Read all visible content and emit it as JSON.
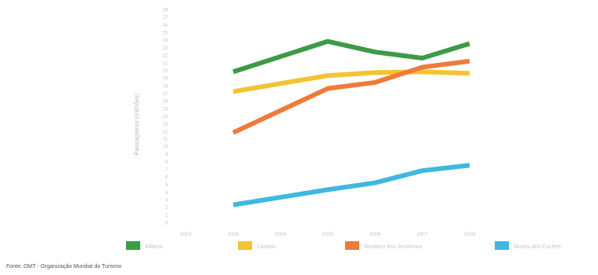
{
  "chart_data": {
    "type": "line",
    "title": "",
    "xlabel": "",
    "ylabel": "Passageiros (milhões)",
    "x": [
      "2002",
      "2003",
      "2004",
      "2005",
      "2006",
      "2007",
      "2008"
    ],
    "ylim": [
      0,
      28
    ],
    "yticks": [
      0,
      1,
      2,
      3,
      4,
      5,
      6,
      7,
      8,
      9,
      10,
      11,
      12,
      13,
      14,
      15,
      16,
      17,
      18,
      19,
      20,
      21,
      22,
      23,
      24,
      25,
      26,
      27,
      28
    ],
    "grid": false,
    "legend": "bottom",
    "series": [
      {
        "name": "Alfama",
        "color": "#3d9a46",
        "values": [
          null,
          19.8,
          null,
          23.8,
          22.4,
          21.6,
          23.5
        ]
      },
      {
        "name": "Castelo",
        "color": "#f2c431",
        "values": [
          null,
          17.2,
          null,
          19.3,
          19.7,
          19.8,
          19.6
        ]
      },
      {
        "name": "Mosteiro dos Jerónimos",
        "color": "#ee7b3a",
        "values": [
          null,
          11.8,
          null,
          17.6,
          18.4,
          20.4,
          21.2
        ]
      },
      {
        "name": "Museu dos Coches",
        "color": "#3fb8e0",
        "values": [
          null,
          2.3,
          null,
          4.3,
          5.2,
          6.8,
          7.5
        ]
      }
    ]
  },
  "source": "Fonte: OMT - Organização Mundial do Turismo"
}
